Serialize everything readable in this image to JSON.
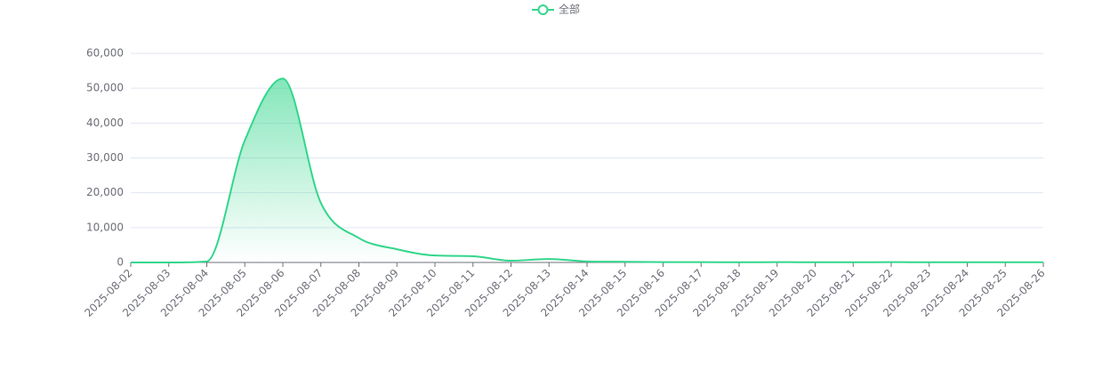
{
  "chart_data": {
    "type": "line",
    "x": [
      "2025-08-02",
      "2025-08-03",
      "2025-08-04",
      "2025-08-05",
      "2025-08-06",
      "2025-08-07",
      "2025-08-08",
      "2025-08-09",
      "2025-08-10",
      "2025-08-11",
      "2025-08-12",
      "2025-08-13",
      "2025-08-14",
      "2025-08-15",
      "2025-08-16",
      "2025-08-17",
      "2025-08-18",
      "2025-08-19",
      "2025-08-20",
      "2025-08-21",
      "2025-08-22",
      "2025-08-23",
      "2025-08-24",
      "2025-08-25",
      "2025-08-26"
    ],
    "series": [
      {
        "name": "全部",
        "color": "#33d68c",
        "values": [
          0,
          0,
          300,
          35000,
          52800,
          17100,
          7000,
          3800,
          2000,
          1800,
          500,
          1000,
          300,
          200,
          100,
          100,
          50,
          100,
          50,
          50,
          100,
          50,
          50,
          50,
          50
        ]
      }
    ],
    "ylim": [
      0,
      60000
    ],
    "yticks": [
      0,
      {
        "value": 10000,
        "label": "10,000"
      },
      {
        "value": 20000,
        "label": "20,000"
      },
      {
        "value": 30000,
        "label": "30,000"
      },
      {
        "value": 40000,
        "label": "40,000"
      },
      {
        "value": 50000,
        "label": "50,000"
      },
      {
        "value": 60000,
        "label": "60,000"
      }
    ],
    "grid": true,
    "area": true,
    "smooth": true,
    "legend": "top"
  }
}
